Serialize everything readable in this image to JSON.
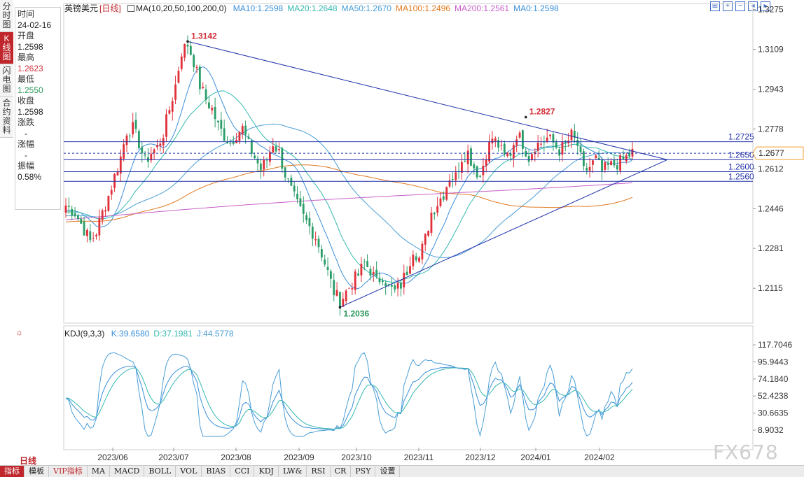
{
  "tabs_left": [
    "分时图",
    "K线图",
    "闪电图",
    "合约资料"
  ],
  "tabs_left_active": 1,
  "header": {
    "symbol": "英镑美元",
    "period_tag": "[日线]",
    "ma_label": "MA(10,20,50,100,200,0)",
    "ma_values": [
      {
        "text": "MA10:1.2598",
        "color": "#3b8fd9"
      },
      {
        "text": "MA20:1.2648",
        "color": "#35b8b0"
      },
      {
        "text": "MA50:1.2670",
        "color": "#4a9ed6"
      },
      {
        "text": "MA100:1.2496",
        "color": "#e07a20"
      },
      {
        "text": "MA200:1.2561",
        "color": "#c85fc8"
      },
      {
        "text": "MA0:1.2598",
        "color": "#3b8fd9"
      }
    ]
  },
  "toolbar_icons": [
    "expand-icon",
    "zoom-in-icon",
    "zoom-out-icon",
    "move-left-icon",
    "move-right-icon"
  ],
  "info": {
    "time_label": "时间",
    "time_value": "24-02-16",
    "open_label": "开盘",
    "open_value": "1.2598",
    "high_label": "最高",
    "high_value": "1.2623",
    "low_label": "最低",
    "low_value": "1.2550",
    "close_label": "收盘",
    "close_value": "1.2598",
    "change_label": "涨跌",
    "change_value": "-",
    "pct_label": "涨幅",
    "pct_value": "-",
    "amp_label": "振幅",
    "amp_value": "0.58%"
  },
  "chart_data": [
    {
      "type": "candlestick",
      "y_ticks": [
        "1.3275",
        "1.3109",
        "1.2943",
        "1.2778",
        "1.2612",
        "1.2446",
        "1.2281",
        "1.2115"
      ],
      "ylim": [
        1.197,
        1.33
      ],
      "x_ticks": [
        "2023/06",
        "2023/07",
        "2023/08",
        "2023/09",
        "2023/10",
        "2023/11",
        "2023/12",
        "2024/01",
        "2024/02"
      ],
      "current_price": "1.2677",
      "annotations": [
        {
          "text": "1.3142",
          "value": 1.3142,
          "color": "#d0303a"
        },
        {
          "text": "1.2827",
          "value": 1.2827,
          "color": "#d0303a"
        },
        {
          "text": "1.2036",
          "value": 1.2036,
          "color": "#2b9a5b"
        }
      ],
      "horizontal_levels": [
        {
          "text": "1.2725",
          "value": 1.2725
        },
        {
          "text": "1.2650",
          "value": 1.265
        },
        {
          "text": "1.2600",
          "value": 1.26
        },
        {
          "text": "1.2560",
          "value": 1.256
        }
      ],
      "close_path": [
        [
          0,
          1.246
        ],
        [
          3,
          1.243
        ],
        [
          6,
          1.236
        ],
        [
          8,
          1.231
        ],
        [
          10,
          1.235
        ],
        [
          12,
          1.243
        ],
        [
          14,
          1.25
        ],
        [
          16,
          1.258
        ],
        [
          18,
          1.266
        ],
        [
          20,
          1.277
        ],
        [
          22,
          1.278
        ],
        [
          24,
          1.272
        ],
        [
          26,
          1.264
        ],
        [
          28,
          1.268
        ],
        [
          30,
          1.27
        ],
        [
          32,
          1.276
        ],
        [
          34,
          1.286
        ],
        [
          36,
          1.296
        ],
        [
          38,
          1.31
        ],
        [
          40,
          1.313
        ],
        [
          42,
          1.306
        ],
        [
          44,
          1.296
        ],
        [
          46,
          1.29
        ],
        [
          48,
          1.286
        ],
        [
          50,
          1.279
        ],
        [
          52,
          1.275
        ],
        [
          54,
          1.272
        ],
        [
          56,
          1.276
        ],
        [
          58,
          1.278
        ],
        [
          60,
          1.271
        ],
        [
          62,
          1.266
        ],
        [
          64,
          1.261
        ],
        [
          66,
          1.265
        ],
        [
          68,
          1.272
        ],
        [
          70,
          1.268
        ],
        [
          72,
          1.259
        ],
        [
          74,
          1.252
        ],
        [
          76,
          1.246
        ],
        [
          78,
          1.241
        ],
        [
          80,
          1.237
        ],
        [
          82,
          1.233
        ],
        [
          84,
          1.226
        ],
        [
          86,
          1.218
        ],
        [
          88,
          1.21
        ],
        [
          90,
          1.206
        ],
        [
          92,
          1.21
        ],
        [
          94,
          1.214
        ],
        [
          96,
          1.217
        ],
        [
          98,
          1.222
        ],
        [
          100,
          1.219
        ],
        [
          102,
          1.214
        ],
        [
          104,
          1.217
        ],
        [
          106,
          1.212
        ],
        [
          108,
          1.21
        ],
        [
          110,
          1.213
        ],
        [
          112,
          1.219
        ],
        [
          114,
          1.228
        ],
        [
          116,
          1.224
        ],
        [
          118,
          1.232
        ],
        [
          120,
          1.243
        ],
        [
          122,
          1.247
        ],
        [
          124,
          1.251
        ],
        [
          126,
          1.258
        ],
        [
          128,
          1.258
        ],
        [
          130,
          1.266
        ],
        [
          132,
          1.268
        ],
        [
          134,
          1.262
        ],
        [
          136,
          1.258
        ],
        [
          138,
          1.268
        ],
        [
          140,
          1.274
        ],
        [
          142,
          1.271
        ],
        [
          144,
          1.266
        ],
        [
          146,
          1.268
        ],
        [
          148,
          1.276
        ],
        [
          150,
          1.272
        ],
        [
          152,
          1.266
        ],
        [
          154,
          1.271
        ],
        [
          156,
          1.272
        ],
        [
          158,
          1.274
        ],
        [
          160,
          1.272
        ],
        [
          162,
          1.269
        ],
        [
          164,
          1.271
        ],
        [
          166,
          1.275
        ],
        [
          168,
          1.271
        ],
        [
          170,
          1.26
        ],
        [
          172,
          1.262
        ],
        [
          174,
          1.265
        ],
        [
          176,
          1.26
        ],
        [
          178,
          1.262
        ],
        [
          180,
          1.263
        ],
        [
          182,
          1.264
        ],
        [
          184,
          1.266
        ],
        [
          186,
          1.268
        ]
      ],
      "ma_series": [
        {
          "name": "MA10",
          "color": "#3b8fd9"
        },
        {
          "name": "MA20",
          "color": "#35b8b0"
        },
        {
          "name": "MA50",
          "color": "#4a9ed6"
        },
        {
          "name": "MA100",
          "color": "#e07a20"
        },
        {
          "name": "MA200",
          "color": "#c85fc8"
        }
      ]
    },
    {
      "type": "line",
      "indicator": "KDJ(9,3,3)",
      "values": [
        {
          "text": "K:39.6580",
          "color": "#3b8fd9"
        },
        {
          "text": "D:37.1981",
          "color": "#35b8b0"
        },
        {
          "text": "J:44.5778",
          "color": "#4a9ed6"
        }
      ],
      "y_ticks": [
        "117.7046",
        "95.9443",
        "74.1840",
        "52.4238",
        "30.6635",
        "8.9032"
      ],
      "ylim": [
        0,
        124
      ]
    }
  ],
  "period_label": "日线",
  "bottom_tabs": [
    "指标",
    "模板",
    "VIP指标",
    "MA",
    "MACD",
    "BOLL",
    "VOL",
    "BIAS",
    "CCI",
    "KDJ",
    "LW&",
    "RSI",
    "CR",
    "PSY",
    "设置"
  ],
  "bottom_tabs_active": 0,
  "watermark": "FX678"
}
